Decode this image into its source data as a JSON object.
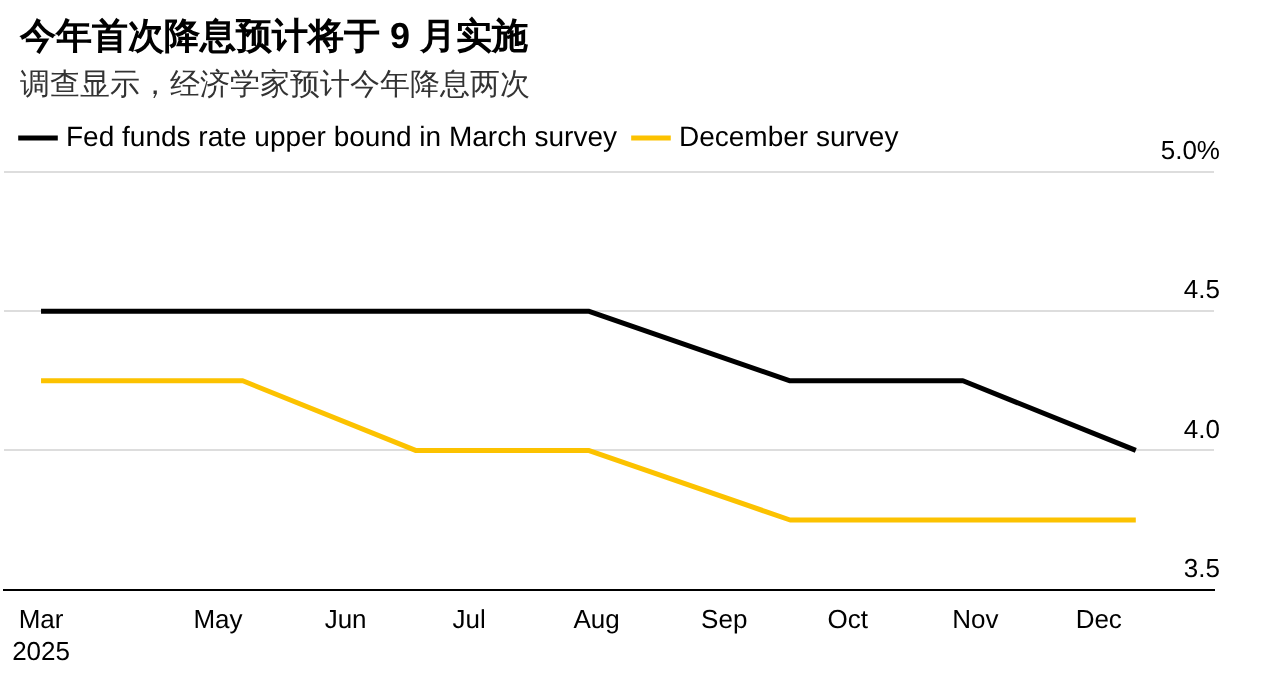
{
  "chart_data": {
    "type": "line",
    "title": "今年首次降息预计将于 9 月实施",
    "subtitle": "调查显示，经济学家预计今年降息两次",
    "x": [
      "2025-03-19",
      "2025-05-07",
      "2025-06-18",
      "2025-07-30",
      "2025-09-17",
      "2025-10-29",
      "2025-12-10"
    ],
    "series": [
      {
        "name": "Fed funds rate upper bound in March survey",
        "color": "#000000",
        "values": [
          4.5,
          4.5,
          4.5,
          4.5,
          4.25,
          4.25,
          4.0
        ]
      },
      {
        "name": "December survey",
        "color": "#fcc200",
        "values": [
          4.25,
          4.25,
          4.0,
          4.0,
          3.75,
          3.75,
          3.75
        ]
      }
    ],
    "xlim": [
      "2025-03-10",
      "2025-12-29"
    ],
    "xticks": [
      {
        "value": "2025-03-19",
        "label": "Mar\n2025"
      },
      {
        "value": "2025-05-01",
        "label": "May"
      },
      {
        "value": "2025-06-01",
        "label": "Jun"
      },
      {
        "value": "2025-07-01",
        "label": "Jul"
      },
      {
        "value": "2025-08-01",
        "label": "Aug"
      },
      {
        "value": "2025-09-01",
        "label": "Sep"
      },
      {
        "value": "2025-10-01",
        "label": "Oct"
      },
      {
        "value": "2025-11-01",
        "label": "Nov"
      },
      {
        "value": "2025-12-01",
        "label": "Dec"
      }
    ],
    "ylim": [
      3.5,
      5.0
    ],
    "yticks": [
      3.5,
      {
        "value": 4.0,
        "label": "4.0"
      },
      4.5,
      {
        "value": 5.0,
        "label": "5.0%"
      }
    ],
    "grid": "y",
    "legend": "top left",
    "marker": "none",
    "line_style": "solid"
  }
}
